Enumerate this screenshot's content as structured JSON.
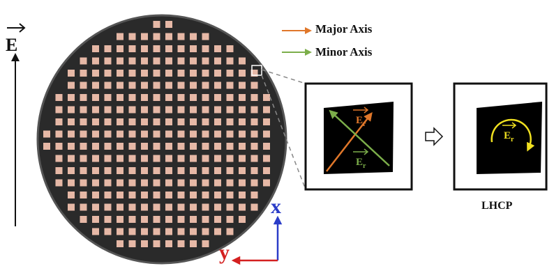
{
  "labels": {
    "e_field": "E",
    "major_axis": "Major Axis",
    "minor_axis": "Minor Axis",
    "lhcp": "LHCP",
    "x_axis": "x",
    "y_axis": "y",
    "er_sub": "r"
  },
  "colors": {
    "major": "#e0772a",
    "minor": "#7cae4a",
    "circular": "#f0e020",
    "x_axis": "#2a3cc8",
    "y_axis": "#d42020",
    "patch": "#e6b8a6",
    "substrate": "#2a2a2a"
  },
  "icons": [
    "e-field-arrow-icon",
    "hollow-right-arrow-icon",
    "circular-arrow-icon"
  ]
}
